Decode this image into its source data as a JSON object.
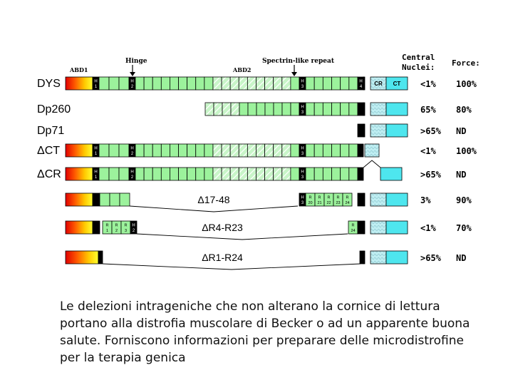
{
  "headers": {
    "abd1": "ABD1",
    "hinge": "Hinge",
    "abd2": "ABD2",
    "spectrin": "Spectrin-like repeat",
    "central_nuclei": [
      "Central",
      "Nuclei:"
    ],
    "force": "Force:"
  },
  "domains": {
    "cr": "CR",
    "ct": "CT"
  },
  "hinge_labels": {
    "h": "H",
    "n1": "1",
    "n2": "2",
    "n3": "3",
    "n4": "4"
  },
  "rows": [
    {
      "name": "DYS",
      "central_nuclei": "<1%",
      "force": "100%"
    },
    {
      "name": "Dp260",
      "central_nuclei": "65%",
      "force": "80%"
    },
    {
      "name": "Dp71",
      "central_nuclei": ">65%",
      "force": "ND"
    },
    {
      "name": "ΔCT",
      "central_nuclei": "<1%",
      "force": "100%"
    },
    {
      "name": "ΔCR",
      "central_nuclei": ">65%",
      "force": "ND"
    },
    {
      "name": "Δ17-48",
      "central_nuclei": "3%",
      "force": "90%",
      "repeats": [
        "3",
        "20",
        "21",
        "22",
        "23",
        "24"
      ]
    },
    {
      "name": "ΔR4-R23",
      "central_nuclei": "<1%",
      "force": "70%",
      "repeats": [
        "1",
        "2",
        "3",
        "24"
      ]
    },
    {
      "name": "ΔR1-R24",
      "central_nuclei": ">65%",
      "force": "ND"
    }
  ],
  "caption": "Le delezioni intrageniche che non alterano la cornice di lettura portano alla distrofia muscolare di Becker o ad un apparente buona salute. Forniscono informazioni per preparare delle microdistrofine per la terapia genica",
  "colors": {
    "repeat_green": "#9cf29c",
    "hatch_green": "#c8f5c8",
    "ct_cyan": "#4ee6ee",
    "cr_hatch": "#bfeef2",
    "black": "#000000"
  }
}
